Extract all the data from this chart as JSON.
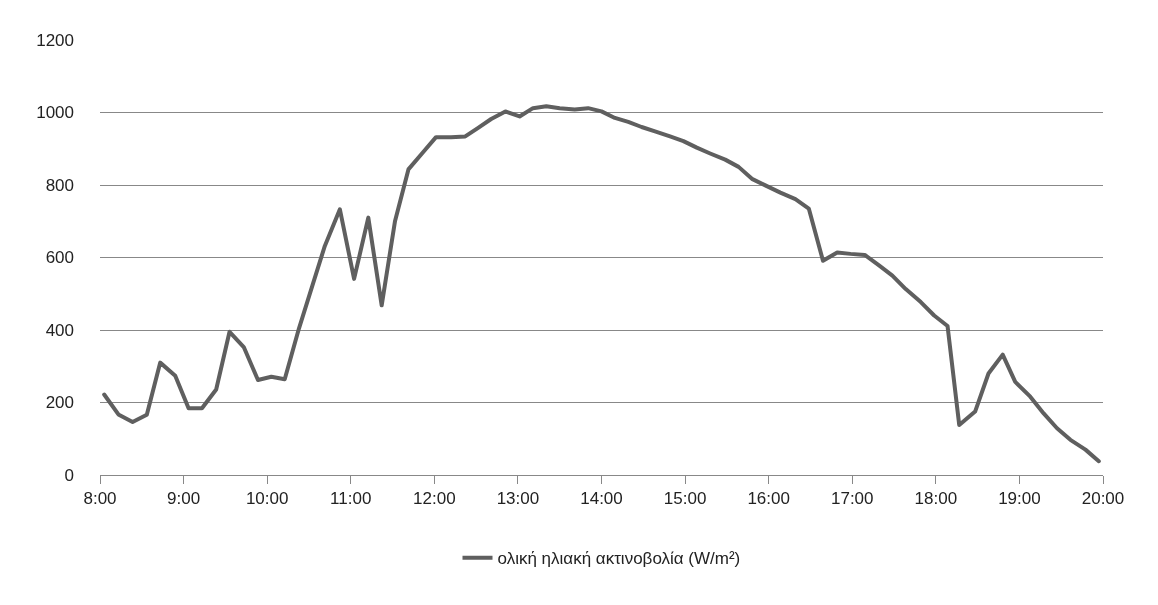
{
  "chart_data": {
    "type": "line",
    "x": [
      8.05,
      8.22,
      8.39,
      8.56,
      8.72,
      8.9,
      9.06,
      9.22,
      9.39,
      9.55,
      9.72,
      9.89,
      10.05,
      10.21,
      10.38,
      10.54,
      10.69,
      10.87,
      11.04,
      11.21,
      11.37,
      11.53,
      11.69,
      11.86,
      12.02,
      12.2,
      12.37,
      12.52,
      12.68,
      12.85,
      13.02,
      13.18,
      13.34,
      13.5,
      13.68,
      13.84,
      14,
      14.16,
      14.32,
      14.48,
      14.64,
      14.82,
      14.98,
      15.14,
      15.3,
      15.48,
      15.64,
      15.8,
      15.96,
      16.14,
      16.32,
      16.48,
      16.65,
      16.82,
      16.98,
      17.15,
      17.32,
      17.48,
      17.64,
      17.82,
      17.98,
      18.14,
      18.28,
      18.47,
      18.63,
      18.8,
      18.95,
      19.13,
      19.29,
      19.45,
      19.61,
      19.79,
      19.95
    ],
    "series": [
      {
        "name": "ολική ηλιακή ακτινοβολία (W/m²)",
        "color": "#5f5f5f",
        "values": [
          222,
          167,
          146,
          166,
          310,
          274,
          184,
          184,
          236,
          395,
          353,
          262,
          271,
          264,
          404,
          522,
          632,
          733,
          541,
          710,
          468,
          701,
          843,
          889,
          932,
          932,
          934,
          957,
          982,
          1003,
          989,
          1012,
          1017,
          1012,
          1008,
          1012,
          1003,
          985,
          974,
          960,
          948,
          934,
          921,
          903,
          887,
          870,
          850,
          817,
          799,
          779,
          761,
          735,
          591,
          614,
          610,
          607,
          578,
          550,
          513,
          477,
          440,
          411,
          138,
          175,
          280,
          332,
          257,
          216,
          170,
          129,
          97,
          70,
          38
        ]
      }
    ],
    "xlim": [
      8,
      20
    ],
    "xticks": [
      {
        "value": 8,
        "label": "8:00"
      },
      {
        "value": 9,
        "label": "9:00"
      },
      {
        "value": 10,
        "label": "10:00"
      },
      {
        "value": 11,
        "label": "11:00"
      },
      {
        "value": 12,
        "label": "12:00"
      },
      {
        "value": 13,
        "label": "13:00"
      },
      {
        "value": 14,
        "label": "14:00"
      },
      {
        "value": 15,
        "label": "15:00"
      },
      {
        "value": 16,
        "label": "16:00"
      },
      {
        "value": 17,
        "label": "17:00"
      },
      {
        "value": 18,
        "label": "18:00"
      },
      {
        "value": 19,
        "label": "19:00"
      },
      {
        "value": 20,
        "label": "20:00"
      }
    ],
    "ylim": [
      0,
      1200
    ],
    "yticks": [
      0,
      200,
      400,
      600,
      800,
      1000,
      1200
    ],
    "grid": "y",
    "legend": "bottom",
    "marker": "none",
    "line_style": "solid"
  }
}
